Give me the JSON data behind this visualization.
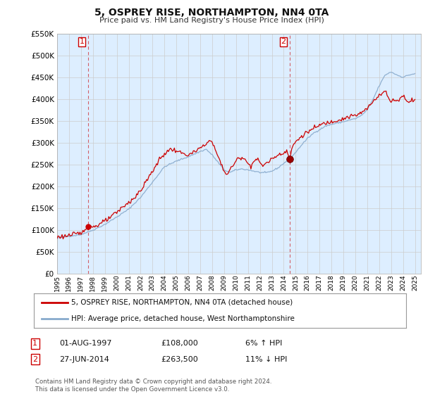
{
  "title": "5, OSPREY RISE, NORTHAMPTON, NN4 0TA",
  "subtitle": "Price paid vs. HM Land Registry's House Price Index (HPI)",
  "legend_line1": "5, OSPREY RISE, NORTHAMPTON, NN4 0TA (detached house)",
  "legend_line2": "HPI: Average price, detached house, West Northamptonshire",
  "sale1_date": "01-AUG-1997",
  "sale1_price": "£108,000",
  "sale1_hpi": "6% ↑ HPI",
  "sale1_year": 1997.58,
  "sale1_value": 108000,
  "sale2_date": "27-JUN-2014",
  "sale2_price": "£263,500",
  "sale2_hpi": "11% ↓ HPI",
  "sale2_year": 2014.49,
  "sale2_value": 263500,
  "footer": "Contains HM Land Registry data © Crown copyright and database right 2024.\nThis data is licensed under the Open Government Licence v3.0.",
  "ylim": [
    0,
    550000
  ],
  "xlim_start": 1995,
  "xlim_end": 2025.5,
  "red_color": "#cc0000",
  "blue_color": "#88aacc",
  "fill_color": "#ddeeff",
  "dashed_color": "#cc0000",
  "background_color": "#ffffff",
  "grid_color": "#cccccc"
}
